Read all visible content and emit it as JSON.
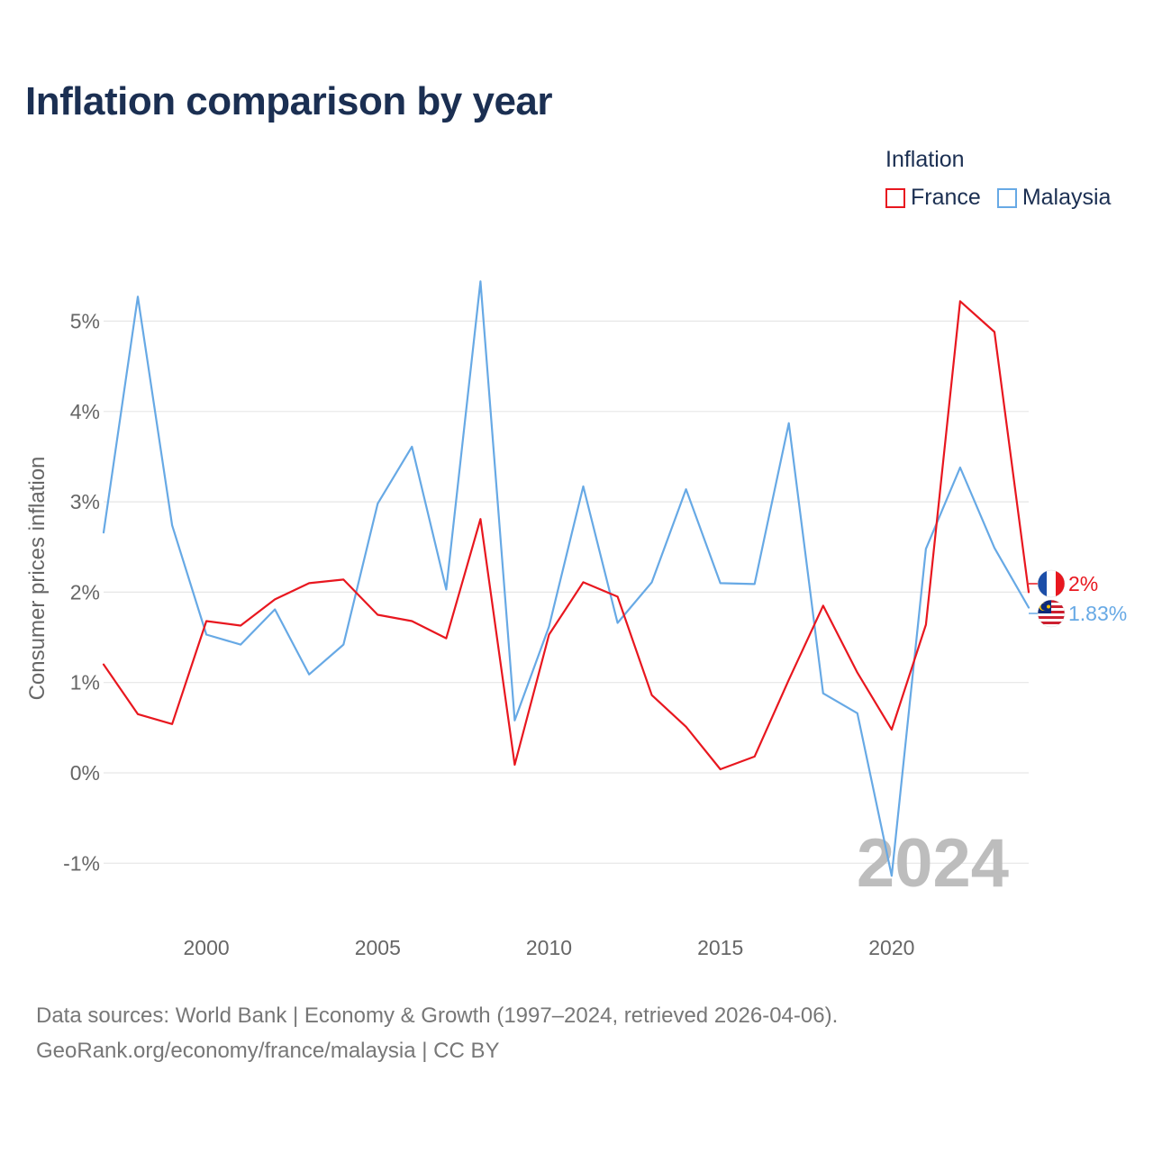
{
  "chart_data": {
    "type": "line",
    "title": "Inflation comparison by year",
    "ylabel": "Consumer prices inflation",
    "xlabel": "",
    "legend_title": "Inflation",
    "year_watermark": "2024",
    "x": [
      1997,
      1998,
      1999,
      2000,
      2001,
      2002,
      2003,
      2004,
      2005,
      2006,
      2007,
      2008,
      2009,
      2010,
      2011,
      2012,
      2013,
      2014,
      2015,
      2016,
      2017,
      2018,
      2019,
      2020,
      2021,
      2022,
      2023,
      2024
    ],
    "xlim": [
      1997,
      2024
    ],
    "ylim": [
      -1.5,
      5.6
    ],
    "x_ticks": [
      {
        "value": 2000,
        "label": "2000"
      },
      {
        "value": 2005,
        "label": "2005"
      },
      {
        "value": 2010,
        "label": "2010"
      },
      {
        "value": 2015,
        "label": "2015"
      },
      {
        "value": 2020,
        "label": "2020"
      }
    ],
    "y_ticks": [
      {
        "value": -1,
        "label": "-1%"
      },
      {
        "value": 0,
        "label": "0%"
      },
      {
        "value": 1,
        "label": "1%"
      },
      {
        "value": 2,
        "label": "2%"
      },
      {
        "value": 3,
        "label": "3%"
      },
      {
        "value": 4,
        "label": "4%"
      },
      {
        "value": 5,
        "label": "5%"
      }
    ],
    "series": [
      {
        "name": "France",
        "color": "#e8171f",
        "end_label": "2%",
        "values": [
          1.2,
          0.65,
          0.54,
          1.68,
          1.63,
          1.92,
          2.1,
          2.14,
          1.75,
          1.68,
          1.49,
          2.81,
          0.09,
          1.53,
          2.11,
          1.95,
          0.86,
          0.51,
          0.04,
          0.18,
          1.03,
          1.85,
          1.11,
          0.48,
          1.64,
          5.22,
          4.88,
          2.0
        ]
      },
      {
        "name": "Malaysia",
        "color": "#67a9e5",
        "end_label": "1.83%",
        "values": [
          2.66,
          5.27,
          2.74,
          1.53,
          1.42,
          1.81,
          1.09,
          1.42,
          2.98,
          3.61,
          2.03,
          5.44,
          0.58,
          1.62,
          3.17,
          1.66,
          2.11,
          3.14,
          2.1,
          2.09,
          3.87,
          0.88,
          0.66,
          -1.14,
          2.48,
          3.38,
          2.49,
          1.83
        ]
      }
    ],
    "grid": true
  },
  "footer": {
    "line1": "Data sources: World Bank | Economy & Growth (1997–2024, retrieved 2026-04-06).",
    "line2": "GeoRank.org/economy/france/malaysia | CC BY"
  }
}
